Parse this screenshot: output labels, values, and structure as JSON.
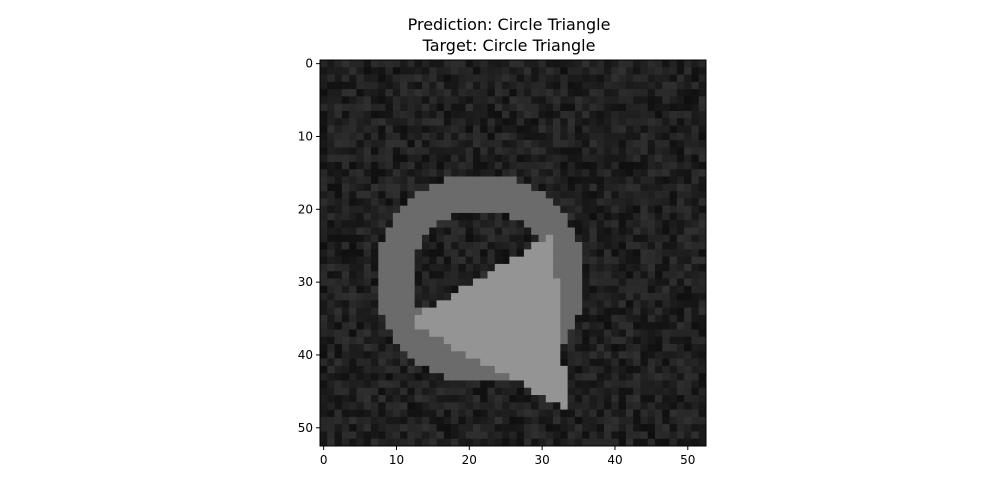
{
  "figure": {
    "title_line1": "Prediction: Circle Triangle",
    "title_line2": "Target: Circle Triangle"
  },
  "chart_data": {
    "type": "heatmap",
    "title": "Prediction: Circle Triangle\nTarget: Circle Triangle",
    "xlabel": "",
    "ylabel": "",
    "grid": false,
    "image_size": [
      53,
      53
    ],
    "xlim": [
      -0.5,
      52.5
    ],
    "ylim": [
      52.5,
      -0.5
    ],
    "xticks": [
      0,
      10,
      20,
      30,
      40,
      50
    ],
    "yticks": [
      0,
      10,
      20,
      30,
      40,
      50
    ],
    "colormap": "gray",
    "shapes": [
      {
        "kind": "ring",
        "center": [
          21.5,
          29.5
        ],
        "outer_radius": 14.5,
        "inner_radius": 9.5,
        "gray_level": "#6b6b6b"
      },
      {
        "kind": "triangle",
        "vertices": [
          [
            31.5,
            23.5
          ],
          [
            11.5,
            35.5
          ],
          [
            33.5,
            47.5
          ]
        ],
        "gray_level": "#949494"
      }
    ],
    "background": {
      "gray_min": "#0f0f0f",
      "gray_max": "#303030"
    }
  },
  "colors": {
    "ring": "#6b6b6b",
    "triangle": "#949494",
    "frame": "#000000"
  }
}
